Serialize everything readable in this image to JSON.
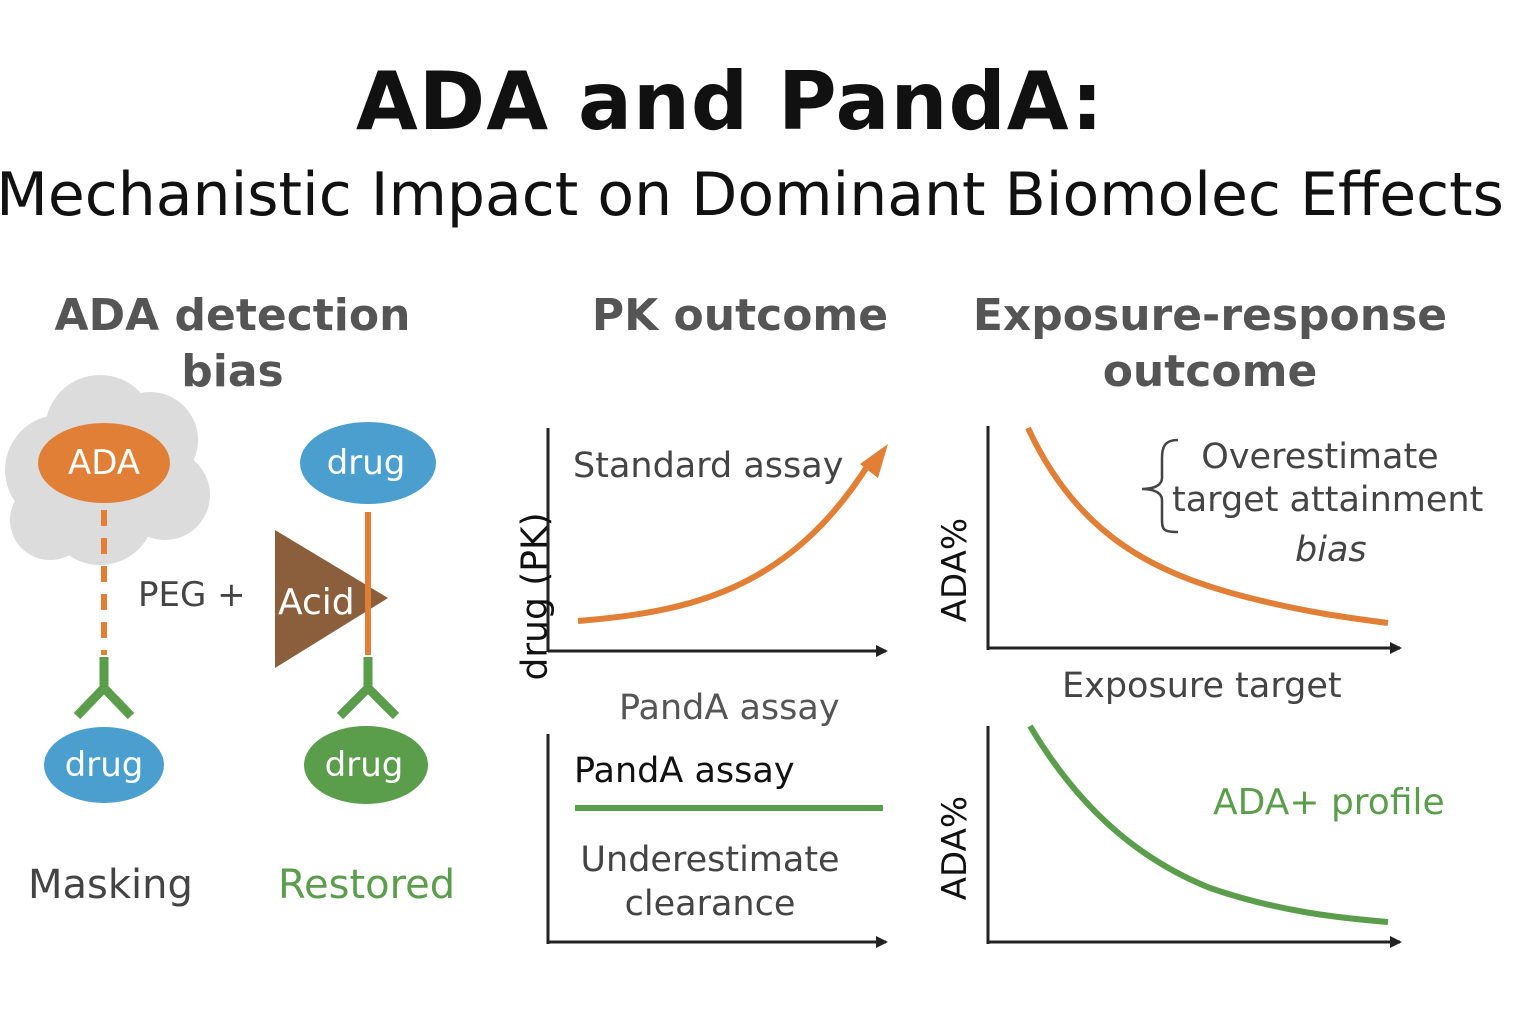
{
  "header": {
    "title": "ADA and PandA:",
    "subtitle": "Mechanistic Impact on Dominant Biomolec Effects"
  },
  "panels": {
    "ada": {
      "title": "ADA detection bias",
      "cloud_label": "ADA",
      "drug_top_label": "drug",
      "drug_left_label": "drug",
      "drug_right_label": "drug",
      "peg_label": "PEG +",
      "acid_label": "Acid",
      "masking_label": "Masking",
      "restored_label": "Restored"
    },
    "pk": {
      "title": "PK outcome",
      "y_label": "drug (PK)",
      "standard_label": "Standard assay",
      "panda_label_between": "PandA assay",
      "panda_label_inside": "PandA assay",
      "underestimate_line1": "Underestimate",
      "underestimate_line2": "clearance"
    },
    "er": {
      "title_line1": "Exposure-response",
      "title_line2": "outcome",
      "y_label_top": "ADA%",
      "y_label_bottom": "ADA%",
      "x_label": "Exposure target",
      "overestimate_line1": "Overestimate",
      "overestimate_line2": "target attainment",
      "overestimate_line3": "bias",
      "ada_profile_label": "ADA+ profile"
    }
  },
  "colors": {
    "orange": "#e07f35",
    "green": "#5a9e4b",
    "blue": "#4a9fcf",
    "brown": "#8b5f3c",
    "cloud": "#dcdcdc",
    "axis": "#222222",
    "text_gray": "#444444"
  },
  "icons": {
    "antibody": "y-shaped-antibody-icon",
    "cloud": "cloud-shape",
    "triangle": "acid-triangle"
  }
}
